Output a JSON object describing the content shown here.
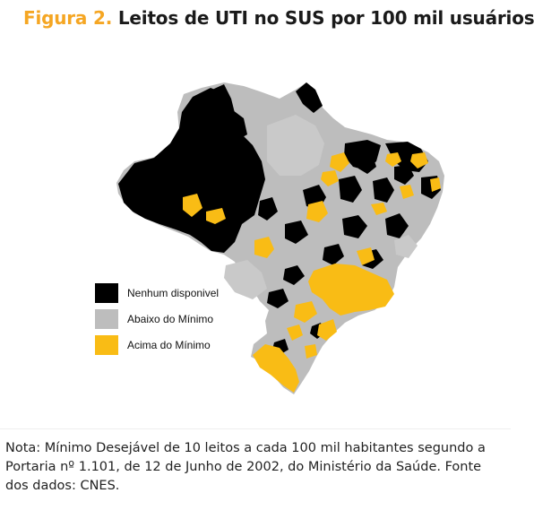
{
  "title": {
    "figure_label": "Figura 2.",
    "text": "Leitos de UTI no SUS por 100 mil usuários"
  },
  "legend": {
    "items": [
      {
        "label": "Nenhum disponivel",
        "color": "#000000"
      },
      {
        "label": "Abaixo do Mínimo",
        "color": "#bdbdbd"
      },
      {
        "label": "Acima do Mínimo",
        "color": "#f9bc15"
      }
    ]
  },
  "note": "Nota: Mínimo Desejável de 10 leitos a cada 100 mil habitantes segundo a Portaria nº 1.101, de 12 de Junho de 2002, do Ministério da Saúde. Fonte dos dados: CNES.",
  "colors": {
    "title_accent": "#f5a623",
    "none": "#000000",
    "below": "#bdbdbd",
    "above": "#f9bc15"
  }
}
